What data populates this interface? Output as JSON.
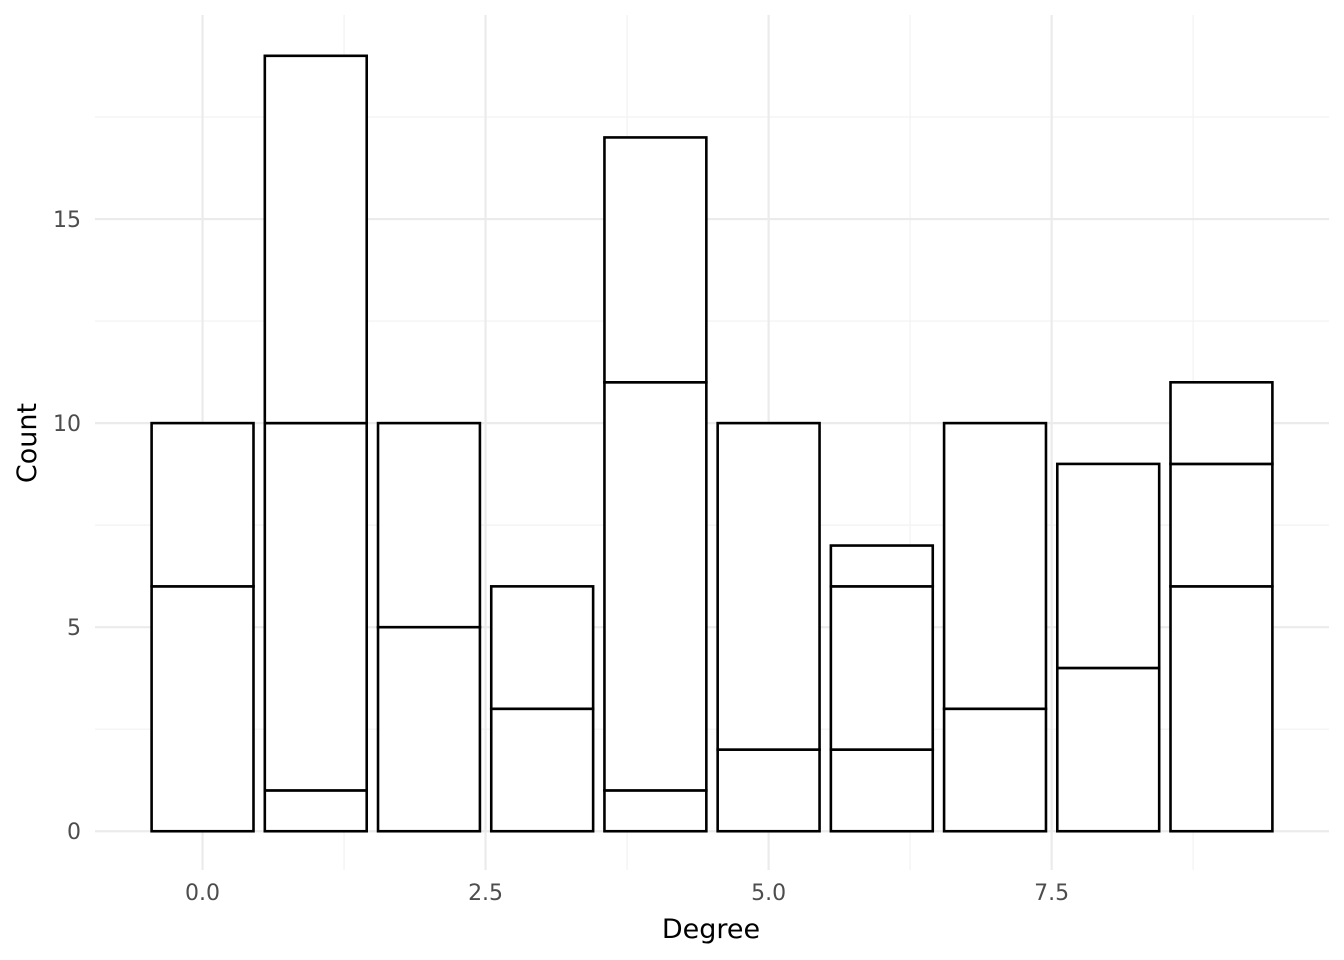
{
  "chart_data": {
    "type": "bar",
    "stacked": true,
    "title": "",
    "xlabel": "Degree",
    "ylabel": "Count",
    "x": [
      0,
      1,
      2,
      3,
      4,
      5,
      6,
      7,
      8,
      9
    ],
    "segment_boundaries": [
      [
        6,
        10
      ],
      [
        1,
        10,
        19
      ],
      [
        5,
        10
      ],
      [
        3,
        6
      ],
      [
        1,
        11,
        17
      ],
      [
        2,
        10
      ],
      [
        2,
        6,
        7
      ],
      [
        3,
        10
      ],
      [
        4,
        9
      ],
      [
        6,
        9,
        11
      ]
    ],
    "totals": [
      10,
      19,
      10,
      6,
      17,
      10,
      7,
      10,
      9,
      11
    ],
    "xlim": [
      -0.95,
      9.95
    ],
    "ylim": [
      -0.95,
      20
    ],
    "x_ticks": [
      0,
      2.5,
      5,
      7.5
    ],
    "x_tick_labels": [
      "0.0",
      "2.5",
      "5.0",
      "7.5"
    ],
    "x_minor_ticks": [
      1.25,
      3.75,
      6.25,
      8.75
    ],
    "y_ticks": [
      0,
      5,
      10,
      15
    ],
    "y_tick_labels": [
      "0",
      "5",
      "10",
      "15"
    ],
    "y_minor_ticks": [
      2.5,
      7.5,
      12.5,
      17.5
    ],
    "grid": true,
    "colors": {
      "bar_fill": "#ffffff",
      "bar_stroke": "#000000",
      "grid": "#ebebeb"
    }
  }
}
